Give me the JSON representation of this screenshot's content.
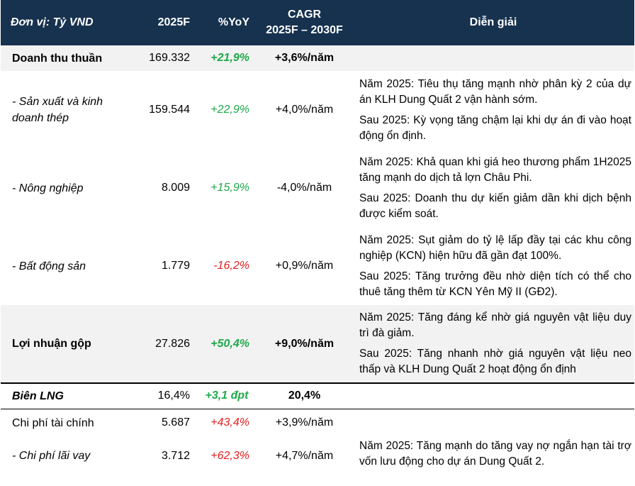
{
  "header": {
    "unit": "Đơn vị: Tỷ VND",
    "col_2025f": "2025F",
    "col_yoy": "%YoY",
    "col_cagr_line1": "CAGR",
    "col_cagr_line2": "2025F – 2030F",
    "col_notes": "Diễn giải"
  },
  "rows": [
    {
      "label": "Doanh thu thuần",
      "value": "169.332",
      "yoy": "+21,9%",
      "cagr": "+3,6%/năm"
    },
    {
      "label": "- Sản xuất và kinh doanh thép",
      "value": "159.544",
      "yoy": "+22,9%",
      "cagr": "+4,0%/năm",
      "note1": "Năm 2025: Tiêu thụ tăng mạnh nhờ phân kỳ 2 của dự án KLH Dung Quất 2 vận hành sớm.",
      "note2": "Sau 2025: Kỳ vọng tăng chậm lại khi dự án đi vào hoạt động ổn định."
    },
    {
      "label": "- Nông nghiệp",
      "value": "8.009",
      "yoy": "+15,9%",
      "cagr": "-4,0%/năm",
      "note1": "Năm 2025: Khả quan khi giá heo thương phẩm 1H2025 tăng mạnh do dịch tả lợn Châu Phi.",
      "note2": "Sau 2025: Doanh thu dự kiến giảm dần khi dịch bệnh được kiểm soát."
    },
    {
      "label": "- Bất động sản",
      "value": "1.779",
      "yoy": "-16,2%",
      "cagr": "+0,9%/năm",
      "note1": "Năm 2025: Sụt giảm do tỷ lệ lấp đầy tại các khu công nghiệp (KCN) hiện hữu đã gần đạt 100%.",
      "note2": "Sau 2025: Tăng trưởng đều nhờ diện tích có thể cho thuê tăng thêm từ KCN Yên Mỹ II (GĐ2)."
    },
    {
      "label": "Lợi nhuận gộp",
      "value": "27.826",
      "yoy": "+50,4%",
      "cagr": "+9,0%/năm",
      "note1": "Năm 2025: Tăng đáng kể nhờ giá nguyên vật liệu duy trì đà giảm.",
      "note2": "Sau 2025: Tăng nhanh nhờ giá nguyên vật liệu neo thấp và KLH Dung Quất 2 hoạt động ổn định"
    },
    {
      "label": "Biên LNG",
      "value": "16,4%",
      "yoy": "+3,1 đpt",
      "cagr": "20,4%"
    },
    {
      "label": "Chi phí tài chính",
      "value": "5.687",
      "yoy": "+43,4%",
      "cagr": "+3,9%/năm"
    },
    {
      "label": "- Chi phí lãi vay",
      "value": "3.712",
      "yoy": "+62,3%",
      "cagr": "+4,7%/năm",
      "note1": "Năm 2025: Tăng mạnh do tăng vay nợ ngắn hạn tài trợ vốn lưu động cho dự án Dung Quất 2."
    }
  ],
  "colors": {
    "header_bg": "#17324f",
    "row_shade": "#f2f2f2",
    "positive": "#1fa94a",
    "negative": "#e02020"
  }
}
